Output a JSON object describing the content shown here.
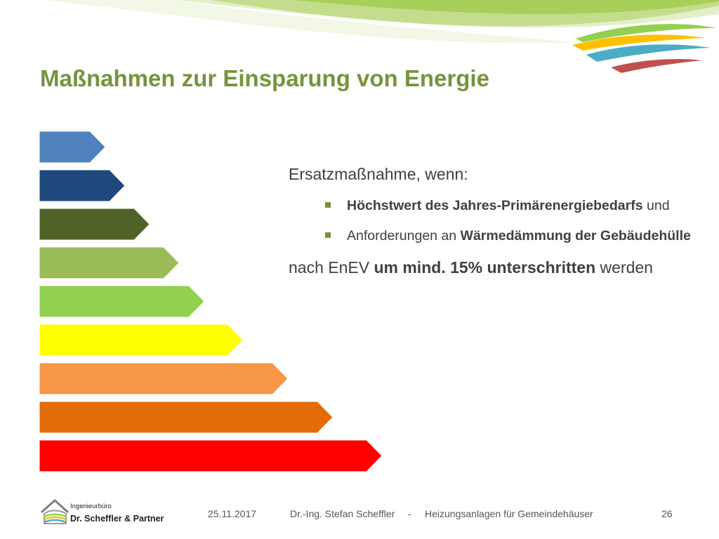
{
  "slide": {
    "title": "Maßnahmen zur Einsparung von Energie",
    "intro": "Ersatzmaßnahme, wenn:",
    "bullets": [
      {
        "bold": "Höchstwert des Jahres-Primärenergiebedarfs",
        "normal": " und"
      },
      {
        "normal": "Anforderungen an ",
        "bold": "Wärmedämmung der Gebäudehülle"
      }
    ],
    "outro": {
      "normal_before": "nach EnEV ",
      "bold": "um mind. 15% unterschritten",
      "normal_after": " werden"
    }
  },
  "energy_scale": {
    "colors": [
      "#4f81bd",
      "#1f497d",
      "#4f6228",
      "#9bbb59",
      "#92d050",
      "#ffff00",
      "#f79646",
      "#e36c09",
      "#ff0000"
    ]
  },
  "swoosh_colors": [
    "#92d050",
    "#c3d69b",
    "#4bacc6",
    "#ffc000",
    "#c0504d"
  ],
  "footer": {
    "logo_line1": "Ingenieurbüro",
    "logo_line2": "Dr. Scheffler & Partner",
    "date": "25.11.2017",
    "author": "Dr.-Ing. Stefan Scheffler",
    "separator": "-",
    "topic": "Heizungsanlagen für Gemeindehäuser",
    "page_number": "26"
  }
}
